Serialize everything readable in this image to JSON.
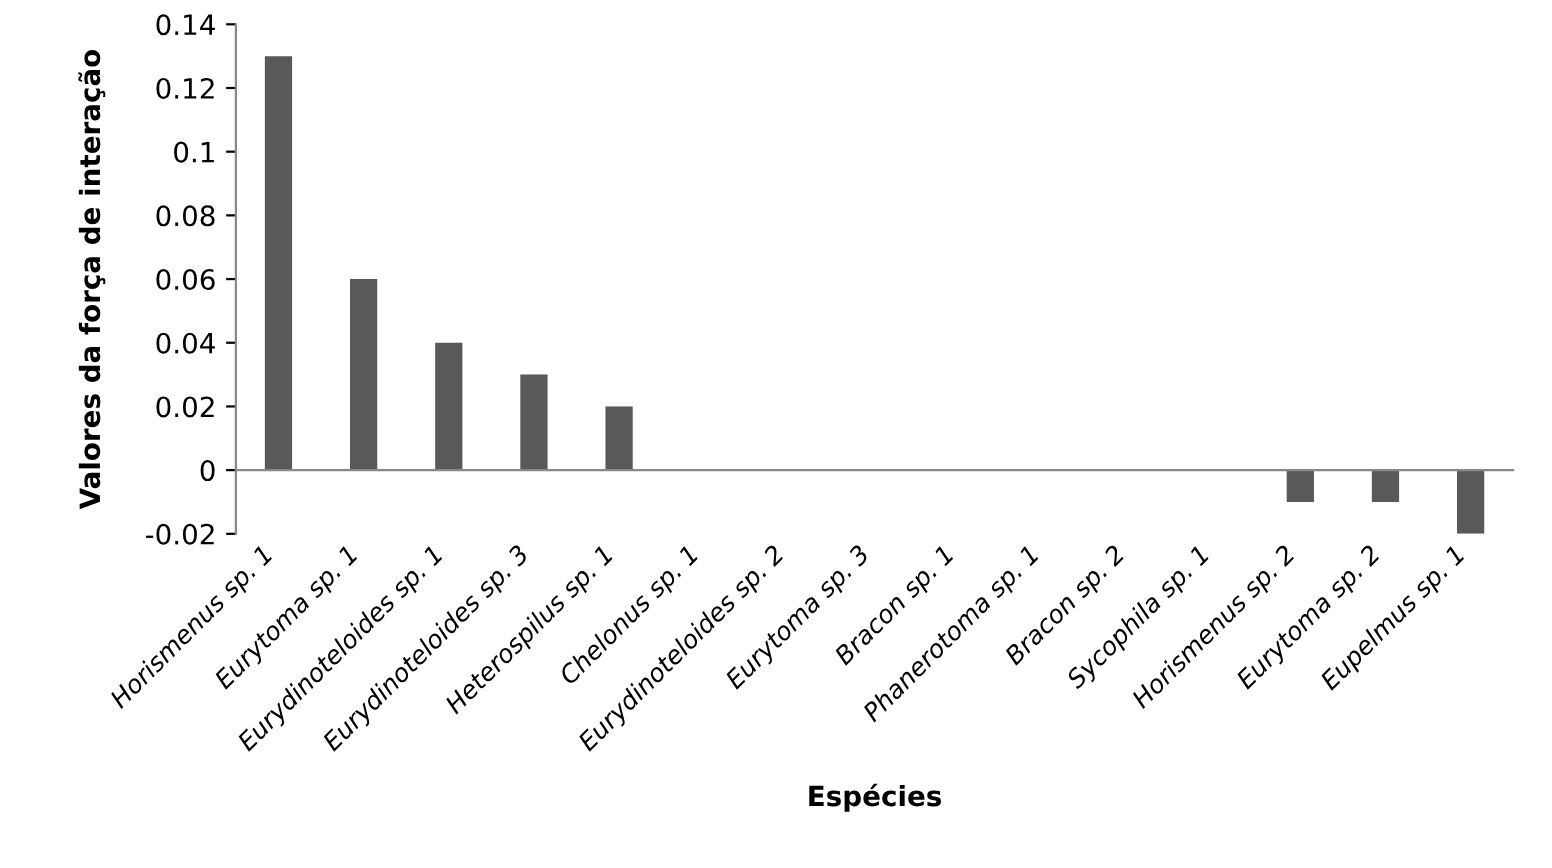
{
  "chart_data": {
    "type": "bar",
    "xlabel": "Espécies",
    "ylabel": "Valores da força de interação",
    "categories": [
      "Horismenus sp. 1",
      "Eurytoma sp. 1",
      "Eurydinoteloides sp. 1",
      "Eurydinoteloides sp. 3",
      "Heterospilus sp. 1",
      "Chelonus sp. 1",
      "Eurydinoteloides sp. 2",
      "Eurytoma sp. 3",
      "Bracon sp. 1",
      "Phanerotoma sp. 1",
      "Bracon sp. 2",
      "Sycophila sp. 1",
      "Horismenus sp. 2",
      "Eurytoma sp. 2",
      "Eupelmus sp. 1"
    ],
    "values": [
      0.13,
      0.06,
      0.04,
      0.03,
      0.02,
      0,
      0,
      0,
      0,
      0,
      0,
      0,
      -0.01,
      -0.01,
      -0.02
    ],
    "color": "#595959",
    "ylim": [
      -0.02,
      0.14
    ],
    "yticks": [
      -0.02,
      0,
      0.02,
      0.04,
      0.06,
      0.08,
      0.1,
      0.12,
      0.14
    ],
    "legend": false
  }
}
